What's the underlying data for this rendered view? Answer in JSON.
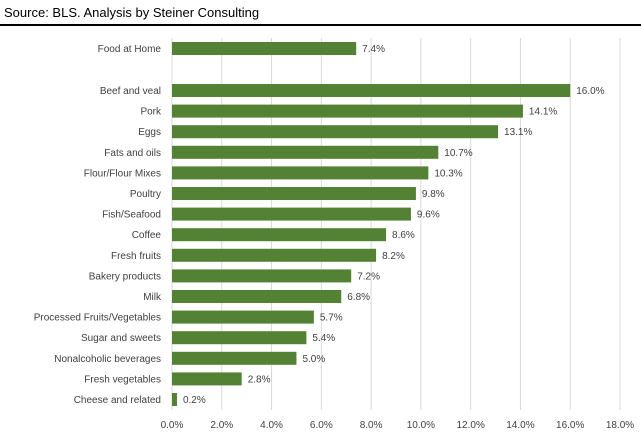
{
  "source": "Source:  BLS.  Analysis by Steiner Consulting",
  "chart_data": {
    "type": "bar",
    "orientation": "horizontal",
    "categories": [
      "Food at Home",
      "Beef and veal",
      "Pork",
      "Eggs",
      "Fats and oils",
      "Flour/Flour Mixes",
      "Poultry",
      "Fish/Seafood",
      "Coffee",
      "Fresh fruits",
      "Bakery products",
      "Milk",
      "Processed Fruits/Vegetables",
      "Sugar and sweets",
      "Nonalcoholic beverages",
      "Fresh vegetables",
      "Cheese and related"
    ],
    "values": [
      7.4,
      16.0,
      14.1,
      13.1,
      10.7,
      10.3,
      9.8,
      9.6,
      8.6,
      8.2,
      7.2,
      6.8,
      5.7,
      5.4,
      5.0,
      2.8,
      0.2
    ],
    "data_labels": [
      "7.4%",
      "16.0%",
      "14.1%",
      "13.1%",
      "10.7%",
      "10.3%",
      "9.8%",
      "9.6%",
      "8.6%",
      "8.2%",
      "7.2%",
      "6.8%",
      "5.7%",
      "5.4%",
      "5.0%",
      "2.8%",
      "0.2%"
    ],
    "x_ticks": [
      "0.0%",
      "2.0%",
      "4.0%",
      "6.0%",
      "8.0%",
      "10.0%",
      "12.0%",
      "14.0%",
      "16.0%",
      "18.0%"
    ],
    "xlim": [
      0,
      18
    ],
    "grid": true,
    "legend": "none",
    "colors": {
      "bar": "#548235",
      "grid": "#d9d9d9",
      "text": "#404040"
    }
  }
}
